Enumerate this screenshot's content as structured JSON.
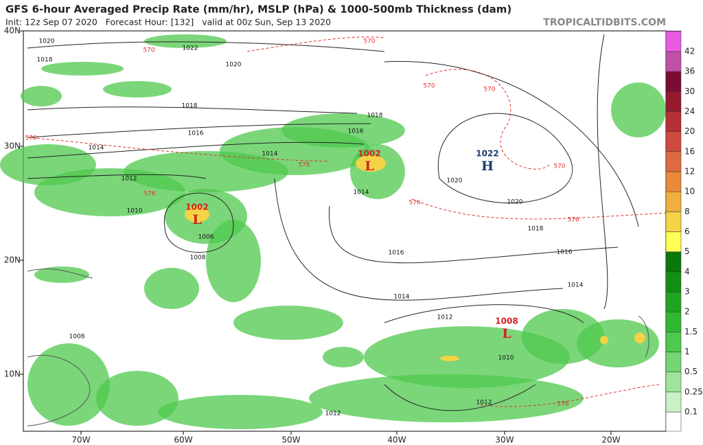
{
  "header": {
    "title": "GFS 6-hour Averaged Precip Rate (mm/hr), MSLP (hPa) & 1000-500mb Thickness (dam)",
    "init": "Init: 12z Sep 07 2020   Forecast Hour: [132]   valid at 00z Sun, Sep 13 2020",
    "source": "TROPICALTIDBITS.COM"
  },
  "map": {
    "lat_labels": [
      "40N",
      "30N",
      "20N",
      "10N"
    ],
    "lon_labels": [
      "70W",
      "60W",
      "50W",
      "40W",
      "30W",
      "20W"
    ],
    "pressure_centers": [
      {
        "letter": "L",
        "value": "1002",
        "color": "#d42020"
      },
      {
        "letter": "L",
        "value": "1002",
        "color": "#d42020"
      },
      {
        "letter": "H",
        "value": "1022",
        "color": "#1c3d6e"
      },
      {
        "letter": "L",
        "value": "1008",
        "color": "#d42020"
      }
    ],
    "isobar_labels": [
      "1020",
      "1022",
      "1018",
      "1020",
      "1018",
      "1016",
      "1014",
      "1014",
      "1012",
      "1010",
      "1006",
      "1008",
      "1018",
      "1016",
      "1014",
      "1020",
      "1020",
      "1018",
      "1016",
      "1016",
      "1014",
      "1014",
      "1012",
      "1010",
      "1008",
      "1012",
      "1012"
    ],
    "thickness_labels": [
      "570",
      "570",
      "576",
      "576",
      "576",
      "570",
      "570",
      "570",
      "576",
      "576",
      "576"
    ]
  },
  "colorbar": {
    "labels": [
      "0.1",
      "0.25",
      "0.5",
      "1",
      "1.5",
      "2",
      "3",
      "4",
      "5",
      "6",
      "8",
      "10",
      "12",
      "16",
      "20",
      "24",
      "30",
      "36",
      "42"
    ],
    "colors": [
      "#ffffff",
      "#c9f1c5",
      "#9ee49a",
      "#74d672",
      "#4fc84e",
      "#30b830",
      "#1fa51f",
      "#138f13",
      "#0a780a",
      "#ffff55",
      "#f4d347",
      "#efae3f",
      "#e88a3a",
      "#de6a43",
      "#cf4a3f",
      "#b52f34",
      "#961b2f",
      "#7a0c36",
      "#c04fa6",
      "#e85ce4",
      "#ff2cff"
    ]
  }
}
